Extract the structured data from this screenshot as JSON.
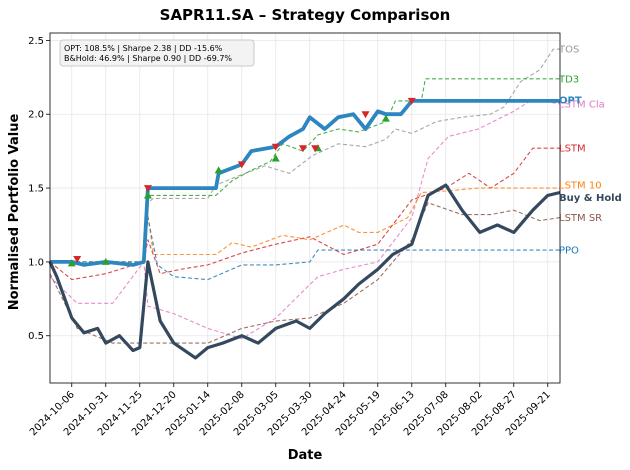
{
  "chart_data": {
    "type": "line",
    "title": "SAPR11.SA – Strategy Comparison",
    "xlabel": "Date",
    "ylabel": "Normalised Portfolio Value",
    "x_ticks": [
      "2024-10-06",
      "2024-10-31",
      "2024-11-25",
      "2024-12-20",
      "2025-01-14",
      "2025-02-08",
      "2025-03-05",
      "2025-03-30",
      "2025-04-24",
      "2025-05-19",
      "2025-06-13",
      "2025-07-08",
      "2025-08-02",
      "2025-08-27",
      "2025-09-21"
    ],
    "xlim": [
      "2024-09-20",
      "2025-09-30"
    ],
    "y_ticks": [
      "0.5",
      "1.0",
      "1.5",
      "2.0",
      "2.5"
    ],
    "ylim": [
      0.18,
      2.55
    ],
    "grid": true,
    "annotation": {
      "line1": "OPT: 108.5% | Sharpe 2.38 | DD -15.6%",
      "line2": "B&Hold: 46.9% | Sharpe 0.90 | DD -69.7%"
    },
    "colors": {
      "OPT": "#2e86c1",
      "Buy & Hold": "#34495e",
      "TOS": "#999999",
      "TD3": "#2ca02c",
      "LSTM Cla": "#e377c2",
      "LSTM": "#d62728",
      "LSTM 10": "#ff7f0e",
      "LSTM SR": "#8c564b",
      "PPO": "#1f77b4",
      "buy_marker": "#2ca02c",
      "sell_marker": "#d62728"
    },
    "series": [
      {
        "name": "TOS",
        "style": "dashed",
        "values": [
          [
            "2024-09-20",
            1.0
          ],
          [
            "2024-11-28",
            1.0
          ],
          [
            "2024-12-01",
            1.4
          ],
          [
            "2024-12-05",
            1.43
          ],
          [
            "2025-01-14",
            1.43
          ],
          [
            "2025-01-20",
            1.52
          ],
          [
            "2025-02-05",
            1.58
          ],
          [
            "2025-02-25",
            1.65
          ],
          [
            "2025-03-15",
            1.6
          ],
          [
            "2025-04-01",
            1.72
          ],
          [
            "2025-04-20",
            1.8
          ],
          [
            "2025-05-10",
            1.78
          ],
          [
            "2025-05-25",
            1.83
          ],
          [
            "2025-06-01",
            1.9
          ],
          [
            "2025-06-13",
            1.87
          ],
          [
            "2025-07-01",
            1.95
          ],
          [
            "2025-07-20",
            1.98
          ],
          [
            "2025-08-10",
            2.0
          ],
          [
            "2025-08-20",
            2.05
          ],
          [
            "2025-09-01",
            2.22
          ],
          [
            "2025-09-15",
            2.3
          ],
          [
            "2025-09-25",
            2.44
          ],
          [
            "2025-09-30",
            2.44
          ]
        ]
      },
      {
        "name": "TD3",
        "style": "dashed",
        "values": [
          [
            "2024-09-20",
            1.0
          ],
          [
            "2024-11-28",
            1.0
          ],
          [
            "2024-12-01",
            1.45
          ],
          [
            "2025-01-20",
            1.45
          ],
          [
            "2025-02-01",
            1.55
          ],
          [
            "2025-02-15",
            1.62
          ],
          [
            "2025-03-01",
            1.68
          ],
          [
            "2025-03-10",
            1.8
          ],
          [
            "2025-03-25",
            1.75
          ],
          [
            "2025-04-05",
            1.86
          ],
          [
            "2025-04-20",
            1.9
          ],
          [
            "2025-05-05",
            1.88
          ],
          [
            "2025-05-25",
            1.95
          ],
          [
            "2025-06-01",
            2.09
          ],
          [
            "2025-06-20",
            2.09
          ],
          [
            "2025-06-23",
            2.24
          ],
          [
            "2025-09-30",
            2.24
          ]
        ]
      },
      {
        "name": "LSTM Cla",
        "style": "dashed",
        "values": [
          [
            "2024-09-20",
            0.9
          ],
          [
            "2024-10-10",
            0.72
          ],
          [
            "2024-11-05",
            0.72
          ],
          [
            "2024-11-28",
            1.0
          ],
          [
            "2024-12-01",
            0.7
          ],
          [
            "2024-12-20",
            0.65
          ],
          [
            "2025-01-14",
            0.55
          ],
          [
            "2025-02-08",
            0.48
          ],
          [
            "2025-03-05",
            0.62
          ],
          [
            "2025-04-05",
            0.9
          ],
          [
            "2025-04-24",
            0.95
          ],
          [
            "2025-05-19",
            1.0
          ],
          [
            "2025-06-13",
            1.3
          ],
          [
            "2025-06-25",
            1.7
          ],
          [
            "2025-07-10",
            1.85
          ],
          [
            "2025-08-01",
            1.9
          ],
          [
            "2025-08-27",
            2.02
          ],
          [
            "2025-09-10",
            2.1
          ],
          [
            "2025-09-30",
            2.07
          ]
        ]
      },
      {
        "name": "LSTM",
        "style": "dashed",
        "values": [
          [
            "2024-09-20",
            1.0
          ],
          [
            "2024-10-06",
            0.88
          ],
          [
            "2024-10-31",
            0.92
          ],
          [
            "2024-11-28",
            1.0
          ],
          [
            "2024-12-01",
            1.15
          ],
          [
            "2024-12-10",
            0.92
          ],
          [
            "2024-12-25",
            0.95
          ],
          [
            "2025-01-14",
            0.98
          ],
          [
            "2025-02-08",
            1.06
          ],
          [
            "2025-03-05",
            1.12
          ],
          [
            "2025-03-30",
            1.17
          ],
          [
            "2025-04-24",
            1.05
          ],
          [
            "2025-05-19",
            1.12
          ],
          [
            "2025-06-13",
            1.42
          ],
          [
            "2025-07-08",
            1.5
          ],
          [
            "2025-07-25",
            1.6
          ],
          [
            "2025-08-10",
            1.5
          ],
          [
            "2025-08-27",
            1.6
          ],
          [
            "2025-09-10",
            1.77
          ],
          [
            "2025-09-30",
            1.77
          ]
        ]
      },
      {
        "name": "LSTM 10",
        "style": "dashed",
        "values": [
          [
            "2024-09-20",
            1.0
          ],
          [
            "2024-11-28",
            1.0
          ],
          [
            "2024-12-01",
            1.32
          ],
          [
            "2024-12-05",
            1.05
          ],
          [
            "2025-01-20",
            1.05
          ],
          [
            "2025-02-01",
            1.13
          ],
          [
            "2025-02-15",
            1.1
          ],
          [
            "2025-03-10",
            1.18
          ],
          [
            "2025-03-30",
            1.15
          ],
          [
            "2025-04-24",
            1.25
          ],
          [
            "2025-05-05",
            1.2
          ],
          [
            "2025-05-19",
            1.2
          ],
          [
            "2025-06-10",
            1.3
          ],
          [
            "2025-06-20",
            1.47
          ],
          [
            "2025-07-08",
            1.48
          ],
          [
            "2025-08-01",
            1.5
          ],
          [
            "2025-09-30",
            1.5
          ]
        ]
      },
      {
        "name": "LSTM SR",
        "style": "dashed",
        "values": [
          [
            "2024-09-20",
            0.92
          ],
          [
            "2024-10-10",
            0.55
          ],
          [
            "2024-11-05",
            0.45
          ],
          [
            "2024-11-28",
            0.45
          ],
          [
            "2025-01-14",
            0.45
          ],
          [
            "2025-02-08",
            0.55
          ],
          [
            "2025-03-05",
            0.6
          ],
          [
            "2025-03-30",
            0.62
          ],
          [
            "2025-04-24",
            0.72
          ],
          [
            "2025-05-19",
            0.88
          ],
          [
            "2025-06-13",
            1.15
          ],
          [
            "2025-06-25",
            1.4
          ],
          [
            "2025-07-20",
            1.32
          ],
          [
            "2025-08-10",
            1.32
          ],
          [
            "2025-08-27",
            1.35
          ],
          [
            "2025-09-15",
            1.28
          ],
          [
            "2025-09-30",
            1.3
          ]
        ]
      },
      {
        "name": "PPO",
        "style": "dashed",
        "values": [
          [
            "2024-09-20",
            1.0
          ],
          [
            "2024-11-28",
            1.0
          ],
          [
            "2024-12-01",
            1.3
          ],
          [
            "2024-12-08",
            0.98
          ],
          [
            "2024-12-20",
            0.9
          ],
          [
            "2025-01-14",
            0.88
          ],
          [
            "2025-02-08",
            0.98
          ],
          [
            "2025-03-05",
            0.98
          ],
          [
            "2025-03-30",
            1.0
          ],
          [
            "2025-04-05",
            1.08
          ],
          [
            "2025-09-30",
            1.08
          ]
        ]
      },
      {
        "name": "OPT",
        "style": "solid",
        "values": [
          [
            "2024-09-20",
            1.0
          ],
          [
            "2024-10-06",
            1.0
          ],
          [
            "2024-10-15",
            0.98
          ],
          [
            "2024-10-31",
            1.0
          ],
          [
            "2024-11-20",
            0.98
          ],
          [
            "2024-11-28",
            1.0
          ],
          [
            "2024-12-01",
            1.5
          ],
          [
            "2025-01-20",
            1.5
          ],
          [
            "2025-01-22",
            1.6
          ],
          [
            "2025-02-08",
            1.66
          ],
          [
            "2025-02-15",
            1.75
          ],
          [
            "2025-03-05",
            1.78
          ],
          [
            "2025-03-15",
            1.85
          ],
          [
            "2025-03-25",
            1.9
          ],
          [
            "2025-03-30",
            1.98
          ],
          [
            "2025-04-10",
            1.9
          ],
          [
            "2025-04-20",
            1.98
          ],
          [
            "2025-05-01",
            2.0
          ],
          [
            "2025-05-10",
            1.9
          ],
          [
            "2025-05-19",
            2.02
          ],
          [
            "2025-05-25",
            2.0
          ],
          [
            "2025-06-05",
            2.0
          ],
          [
            "2025-06-13",
            2.09
          ],
          [
            "2025-09-30",
            2.09
          ]
        ]
      },
      {
        "name": "Buy & Hold",
        "style": "solid",
        "values": [
          [
            "2024-09-20",
            1.0
          ],
          [
            "2024-09-25",
            0.9
          ],
          [
            "2024-10-06",
            0.62
          ],
          [
            "2024-10-15",
            0.52
          ],
          [
            "2024-10-25",
            0.55
          ],
          [
            "2024-10-31",
            0.45
          ],
          [
            "2024-11-10",
            0.5
          ],
          [
            "2024-11-20",
            0.4
          ],
          [
            "2024-11-25",
            0.42
          ],
          [
            "2024-12-01",
            1.0
          ],
          [
            "2024-12-10",
            0.6
          ],
          [
            "2024-12-20",
            0.45
          ],
          [
            "2025-01-05",
            0.35
          ],
          [
            "2025-01-14",
            0.42
          ],
          [
            "2025-01-25",
            0.45
          ],
          [
            "2025-02-08",
            0.5
          ],
          [
            "2025-02-20",
            0.45
          ],
          [
            "2025-03-05",
            0.55
          ],
          [
            "2025-03-20",
            0.6
          ],
          [
            "2025-03-30",
            0.55
          ],
          [
            "2025-04-10",
            0.65
          ],
          [
            "2025-04-24",
            0.75
          ],
          [
            "2025-05-05",
            0.85
          ],
          [
            "2025-05-19",
            0.95
          ],
          [
            "2025-05-30",
            1.05
          ],
          [
            "2025-06-13",
            1.12
          ],
          [
            "2025-06-25",
            1.45
          ],
          [
            "2025-07-08",
            1.52
          ],
          [
            "2025-07-20",
            1.35
          ],
          [
            "2025-08-02",
            1.2
          ],
          [
            "2025-08-15",
            1.25
          ],
          [
            "2025-08-27",
            1.2
          ],
          [
            "2025-09-10",
            1.35
          ],
          [
            "2025-09-21",
            1.45
          ],
          [
            "2025-09-30",
            1.47
          ]
        ]
      }
    ],
    "buy_markers": [
      [
        "2024-10-06",
        0.99
      ],
      [
        "2024-10-31",
        1.0
      ],
      [
        "2024-12-01",
        1.45
      ],
      [
        "2025-01-22",
        1.62
      ],
      [
        "2025-03-05",
        1.7
      ],
      [
        "2025-04-05",
        1.77
      ],
      [
        "2025-05-25",
        1.97
      ]
    ],
    "sell_markers": [
      [
        "2024-10-10",
        1.02
      ],
      [
        "2024-12-01",
        1.5
      ],
      [
        "2025-02-08",
        1.66
      ],
      [
        "2025-03-05",
        1.78
      ],
      [
        "2025-03-25",
        1.77
      ],
      [
        "2025-04-03",
        1.77
      ],
      [
        "2025-05-10",
        2.0
      ],
      [
        "2025-06-13",
        2.09
      ]
    ],
    "end_labels": [
      {
        "text": "TOS",
        "series": "TOS",
        "y": 2.44
      },
      {
        "text": "TD3",
        "series": "TD3",
        "y": 2.24
      },
      {
        "text": "LSTM Cla",
        "series": "LSTM Cla",
        "y": 2.07
      },
      {
        "text": "OPT",
        "series": "OPT",
        "y": 2.09
      },
      {
        "text": "LSTM",
        "series": "LSTM",
        "y": 1.77
      },
      {
        "text": "LSTM 10",
        "series": "LSTM 10",
        "y": 1.5
      },
      {
        "text": "Buy & Hold",
        "series": "Buy & Hold",
        "y": 1.47
      },
      {
        "text": "LSTM SR",
        "series": "LSTM SR",
        "y": 1.3
      },
      {
        "text": "PPO",
        "series": "PPO",
        "y": 1.08
      }
    ]
  }
}
